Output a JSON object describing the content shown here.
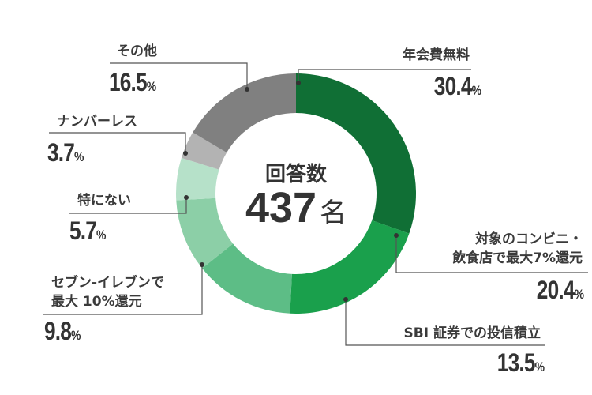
{
  "chart_data": {
    "type": "pie",
    "subtype": "donut",
    "center_label": "回答数",
    "center_value": "437",
    "center_unit": "名",
    "categories": [
      "年会費無料",
      "対象のコンビニ・飲食店で最大7%還元",
      "SBI 証券での投信積立",
      "セブン-イレブンで最大 10%還元",
      "特にない",
      "ナンバーレス",
      "その他"
    ],
    "values": [
      30.4,
      20.4,
      13.5,
      9.8,
      5.7,
      3.7,
      16.5
    ],
    "colors": [
      "#106f35",
      "#1aa04c",
      "#5dbd86",
      "#8ccfa7",
      "#b6e1c9",
      "#b3b3b3",
      "#808080"
    ],
    "unit": "%",
    "legend": "callout labels"
  },
  "labels": {
    "s0": {
      "line1": "年会費無料",
      "pct": "30.4",
      "unit": "%"
    },
    "s1": {
      "line1": "対象のコンビニ・",
      "line2": "飲食店で最大7%還元",
      "pct": "20.4",
      "unit": "%"
    },
    "s2": {
      "line1": "SBI 証券での投信積立",
      "pct": "13.5",
      "unit": "%"
    },
    "s3": {
      "line1": "セブン-イレブンで",
      "line2": "最大 10%還元",
      "pct": "9.8",
      "unit": "%"
    },
    "s4": {
      "line1": "特にない",
      "pct": "5.7",
      "unit": "%"
    },
    "s5": {
      "line1": "ナンバーレス",
      "pct": "3.7",
      "unit": "%"
    },
    "s6": {
      "line1": "その他",
      "pct": "16.5",
      "unit": "%"
    }
  },
  "center": {
    "title": "回答数",
    "count": "437",
    "unit": "名"
  }
}
